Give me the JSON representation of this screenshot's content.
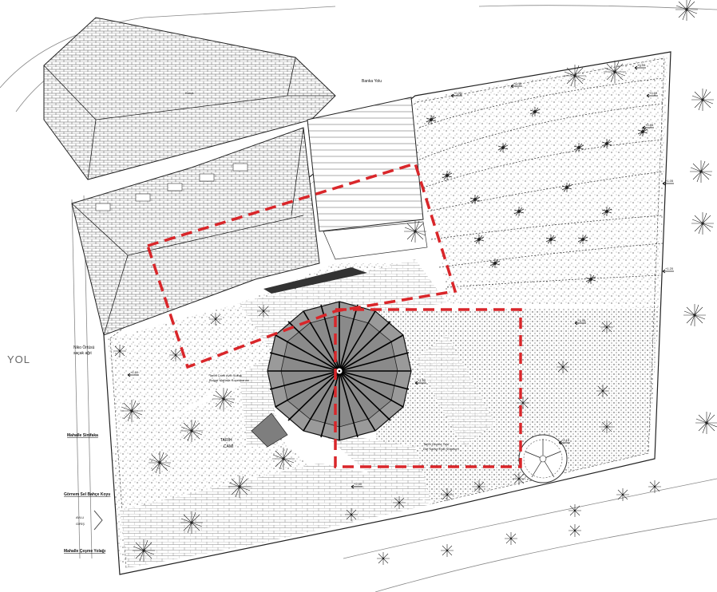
{
  "road_label": "YOL",
  "top_road_label": "Banka Yolu",
  "roof_label": "Koruk",
  "left_annotations": [
    "Niko Örtüsü\nsaçak ağıt",
    "Mahalle Sinifaka",
    "Görnem Sel Bahçe Koyu",
    "Mahalle Çeşme Yolağı"
  ],
  "garden_notes": [
    "Tarihi Cami Avlu Sukuk\nBulgar Mahalle Kopekkanan",
    "Tarihi Gezme Yolu\nDaf Sarayı Eski Sutanum"
  ],
  "center_mark_label": "TARİH\nCAMİ",
  "arrow_label": "AVLU\nGİRİŞ",
  "level_labels": [
    "+0.35",
    "+0.40",
    "+0.55",
    "+0.60",
    "+0.85",
    "+1.05",
    "+1.20",
    "+1.45",
    "+1.60",
    "+1.80",
    "+2.10",
    "+2.40"
  ],
  "colors": {
    "line": "#1a1a1a",
    "highlight": "#d9262a",
    "rotunda": "#8e8e8e",
    "paving": "#bdbdbd"
  }
}
